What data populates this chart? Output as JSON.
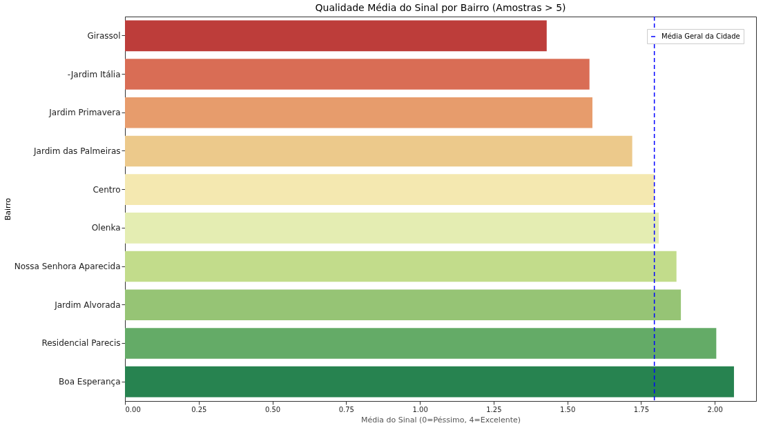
{
  "chart_data": {
    "type": "bar",
    "orientation": "horizontal",
    "title": "Qualidade Média do Sinal por Bairro (Amostras > 5)",
    "xlabel": "Média do Sinal (0=Péssimo, 4=Excelente)",
    "ylabel": "Bairro",
    "categories": [
      "Girassol",
      "-Jardim Itália",
      "Jardim Primavera",
      "Jardim das Palmeiras",
      "Centro",
      "Olenka",
      "Nossa Senhora Aparecida",
      "Jardim Alvorada",
      "Residencial Parecis",
      "Boa Esperança"
    ],
    "values": [
      1.43,
      1.575,
      1.585,
      1.72,
      1.795,
      1.81,
      1.87,
      1.885,
      2.005,
      2.065
    ],
    "colors": [
      "#bd3d3a",
      "#d96d55",
      "#e79c6c",
      "#ecc98b",
      "#f4e8b0",
      "#e4edb2",
      "#c2dc8b",
      "#96c475",
      "#64ab67",
      "#278350"
    ],
    "xlim": [
      0,
      2.14
    ],
    "xticks": [
      {
        "value": 0,
        "label": "0.00"
      },
      0.25,
      {
        "value": 0.5,
        "label": "0.50"
      },
      0.75,
      {
        "value": 1,
        "label": "1.00"
      },
      1.25,
      {
        "value": 1.5,
        "label": "1.50"
      },
      1.75,
      {
        "value": 2,
        "label": "2.00"
      }
    ],
    "ref_lines": [
      {
        "axis": "x",
        "value": 1.795,
        "label": "Média Geral da Cidade",
        "color": "#0000ff",
        "line_style": "dashed"
      }
    ],
    "legend": "top right",
    "grid": false
  }
}
